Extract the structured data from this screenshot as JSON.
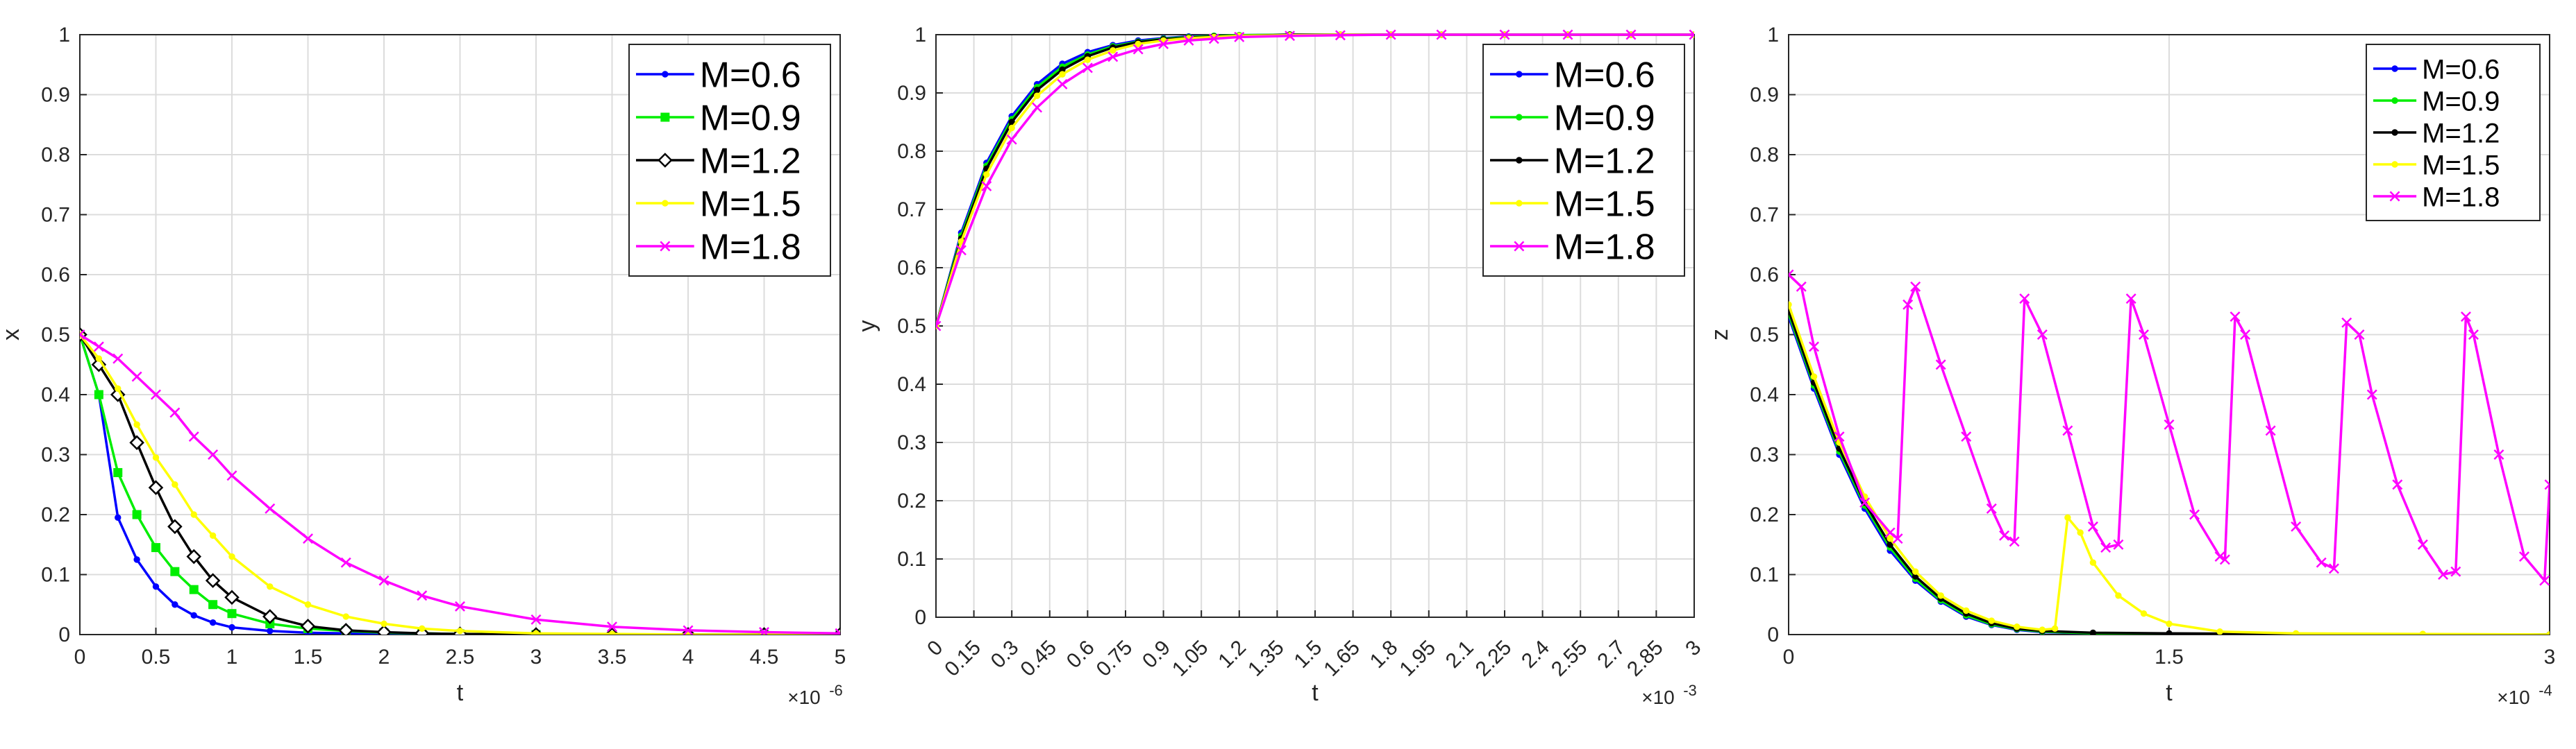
{
  "chart_data": [
    {
      "type": "line",
      "xlabel": "t",
      "ylabel": "x",
      "x_multiplier": "×10",
      "x_exponent": "-6",
      "xlim": [
        0,
        5
      ],
      "ylim": [
        0,
        1
      ],
      "xticks": [
        "0",
        "0.5",
        "1",
        "1.5",
        "2",
        "2.5",
        "3",
        "3.5",
        "4",
        "4.5",
        "5"
      ],
      "yticks": [
        "0",
        "0.1",
        "0.2",
        "0.3",
        "0.4",
        "0.5",
        "0.6",
        "0.7",
        "0.8",
        "0.9",
        "1"
      ],
      "grid": true,
      "legend_position": "top-right",
      "legend_size": "large",
      "x": [
        0,
        0.125,
        0.25,
        0.375,
        0.5,
        0.625,
        0.75,
        0.875,
        1,
        1.25,
        1.5,
        1.75,
        2,
        2.25,
        2.5,
        3,
        3.5,
        4,
        4.5,
        5
      ],
      "series": [
        {
          "name": "M=0.6",
          "color": "#0000ff",
          "marker": "dot",
          "values": [
            0.5,
            0.4,
            0.195,
            0.125,
            0.08,
            0.05,
            0.032,
            0.02,
            0.012,
            0.006,
            0.003,
            0.002,
            0.001,
            0.001,
            0,
            0,
            0,
            0,
            0,
            0
          ]
        },
        {
          "name": "M=0.9",
          "color": "#00ee00",
          "marker": "square",
          "values": [
            0.5,
            0.4,
            0.27,
            0.2,
            0.145,
            0.105,
            0.075,
            0.05,
            0.035,
            0.018,
            0.01,
            0.006,
            0.003,
            0.002,
            0.001,
            0,
            0,
            0,
            0,
            0
          ]
        },
        {
          "name": "M=1.2",
          "color": "#000000",
          "marker": "diamond",
          "values": [
            0.5,
            0.45,
            0.4,
            0.32,
            0.245,
            0.18,
            0.13,
            0.09,
            0.062,
            0.03,
            0.014,
            0.007,
            0.004,
            0.002,
            0.001,
            0,
            0,
            0,
            0,
            0
          ]
        },
        {
          "name": "M=1.5",
          "color": "#ffff00",
          "marker": "dot",
          "values": [
            0.5,
            0.46,
            0.41,
            0.35,
            0.295,
            0.25,
            0.2,
            0.165,
            0.13,
            0.08,
            0.05,
            0.03,
            0.018,
            0.01,
            0.006,
            0.002,
            0.001,
            0,
            0,
            0
          ]
        },
        {
          "name": "M=1.8",
          "color": "#ff00ff",
          "marker": "x",
          "values": [
            0.5,
            0.48,
            0.46,
            0.43,
            0.4,
            0.37,
            0.33,
            0.3,
            0.265,
            0.21,
            0.16,
            0.12,
            0.09,
            0.065,
            0.047,
            0.025,
            0.013,
            0.007,
            0.004,
            0.002
          ]
        }
      ]
    },
    {
      "type": "line",
      "xlabel": "t",
      "ylabel": "y",
      "x_multiplier": "×10",
      "x_exponent": "-3",
      "xlim": [
        0,
        3
      ],
      "ylim": [
        0,
        1
      ],
      "xticks": [
        "0",
        "0.15",
        "0.3",
        "0.45",
        "0.6",
        "0.75",
        "0.9",
        "1.05",
        "1.2",
        "1.35",
        "1.5",
        "1.65",
        "1.8",
        "1.95",
        "2.1",
        "2.25",
        "2.4",
        "2.55",
        "2.7",
        "2.85",
        "3"
      ],
      "yticks": [
        "0",
        "0.1",
        "0.2",
        "0.3",
        "0.4",
        "0.5",
        "0.6",
        "0.7",
        "0.8",
        "0.9",
        "1"
      ],
      "grid": true,
      "legend_position": "top-right",
      "legend_size": "large",
      "x": [
        0,
        0.1,
        0.2,
        0.3,
        0.4,
        0.5,
        0.6,
        0.7,
        0.8,
        0.9,
        1.0,
        1.1,
        1.2,
        1.4,
        1.6,
        1.8,
        2.0,
        2.25,
        2.5,
        2.75,
        3.0
      ],
      "series": [
        {
          "name": "M=0.6",
          "color": "#0000ff",
          "marker": "dot",
          "values": [
            0.5,
            0.66,
            0.78,
            0.86,
            0.915,
            0.95,
            0.97,
            0.982,
            0.99,
            0.994,
            0.997,
            0.998,
            0.999,
            1,
            1,
            1,
            1,
            1,
            1,
            1,
            1
          ]
        },
        {
          "name": "M=0.9",
          "color": "#00ee00",
          "marker": "dot",
          "values": [
            0.5,
            0.655,
            0.775,
            0.855,
            0.91,
            0.945,
            0.966,
            0.98,
            0.988,
            0.993,
            0.996,
            0.998,
            0.999,
            1,
            1,
            1,
            1,
            1,
            1,
            1,
            1
          ]
        },
        {
          "name": "M=1.2",
          "color": "#000000",
          "marker": "dot",
          "values": [
            0.5,
            0.65,
            0.77,
            0.85,
            0.905,
            0.94,
            0.963,
            0.978,
            0.987,
            0.992,
            0.995,
            0.997,
            0.998,
            1,
            1,
            1,
            1,
            1,
            1,
            1,
            1
          ]
        },
        {
          "name": "M=1.5",
          "color": "#ffff00",
          "marker": "dot",
          "values": [
            0.5,
            0.645,
            0.76,
            0.84,
            0.895,
            0.932,
            0.957,
            0.973,
            0.984,
            0.99,
            0.994,
            0.996,
            0.998,
            0.999,
            1,
            1,
            1,
            1,
            1,
            1,
            1
          ]
        },
        {
          "name": "M=1.8",
          "color": "#ff00ff",
          "marker": "x",
          "values": [
            0.5,
            0.63,
            0.74,
            0.82,
            0.875,
            0.915,
            0.943,
            0.962,
            0.975,
            0.984,
            0.99,
            0.993,
            0.996,
            0.998,
            0.999,
            1,
            1,
            1,
            1,
            1,
            1
          ]
        }
      ]
    },
    {
      "type": "line",
      "xlabel": "t",
      "ylabel": "z",
      "x_multiplier": "×10",
      "x_exponent": "-4",
      "xlim": [
        0,
        3
      ],
      "ylim": [
        0,
        1
      ],
      "xticks": [
        "0",
        "1.5",
        "3"
      ],
      "yticks": [
        "0",
        "0.1",
        "0.2",
        "0.3",
        "0.4",
        "0.5",
        "0.6",
        "0.7",
        "0.8",
        "0.9",
        "1"
      ],
      "grid": true,
      "legend_position": "top-right",
      "legend_size": "medium",
      "series": [
        {
          "name": "M=0.6",
          "color": "#0000ff",
          "marker": "dot",
          "x": [
            0,
            0.1,
            0.2,
            0.3,
            0.4,
            0.5,
            0.6,
            0.7,
            0.8,
            0.9,
            1.0,
            1.2,
            1.5,
            2.0,
            2.5,
            3.0
          ],
          "values": [
            0.53,
            0.41,
            0.3,
            0.21,
            0.14,
            0.09,
            0.055,
            0.03,
            0.016,
            0.008,
            0.004,
            0.002,
            0.001,
            0,
            0,
            0
          ]
        },
        {
          "name": "M=0.9",
          "color": "#00ee00",
          "marker": "dot",
          "x": [
            0,
            0.1,
            0.2,
            0.3,
            0.4,
            0.5,
            0.6,
            0.7,
            0.8,
            0.9,
            1.0,
            1.2,
            1.5,
            2.0,
            2.5,
            3.0
          ],
          "values": [
            0.535,
            0.415,
            0.305,
            0.215,
            0.145,
            0.093,
            0.057,
            0.032,
            0.017,
            0.009,
            0.005,
            0.002,
            0.001,
            0,
            0,
            0
          ]
        },
        {
          "name": "M=1.2",
          "color": "#000000",
          "marker": "dot",
          "x": [
            0,
            0.1,
            0.2,
            0.3,
            0.4,
            0.5,
            0.6,
            0.7,
            0.8,
            0.9,
            1.0,
            1.2,
            1.5,
            2.0,
            2.5,
            3.0
          ],
          "values": [
            0.54,
            0.42,
            0.31,
            0.22,
            0.15,
            0.097,
            0.06,
            0.035,
            0.019,
            0.01,
            0.006,
            0.003,
            0.002,
            0.001,
            0,
            0
          ]
        },
        {
          "name": "M=1.5",
          "color": "#ffff00",
          "marker": "dot",
          "x": [
            0,
            0.1,
            0.2,
            0.3,
            0.4,
            0.5,
            0.6,
            0.7,
            0.8,
            0.9,
            1.0,
            1.05,
            1.1,
            1.15,
            1.2,
            1.3,
            1.4,
            1.5,
            1.7,
            2.0,
            2.5,
            3.0
          ],
          "values": [
            0.55,
            0.43,
            0.32,
            0.23,
            0.16,
            0.105,
            0.065,
            0.04,
            0.023,
            0.013,
            0.008,
            0.01,
            0.195,
            0.17,
            0.12,
            0.065,
            0.035,
            0.018,
            0.005,
            0.002,
            0.001,
            0
          ]
        },
        {
          "name": "M=1.8",
          "color": "#ff00ff",
          "marker": "x",
          "x": [
            0,
            0.05,
            0.1,
            0.2,
            0.3,
            0.4,
            0.43,
            0.47,
            0.5,
            0.6,
            0.7,
            0.8,
            0.85,
            0.89,
            0.93,
            1.0,
            1.1,
            1.2,
            1.25,
            1.3,
            1.35,
            1.4,
            1.5,
            1.6,
            1.7,
            1.72,
            1.76,
            1.8,
            1.9,
            2.0,
            2.1,
            2.15,
            2.2,
            2.25,
            2.3,
            2.4,
            2.5,
            2.58,
            2.63,
            2.67,
            2.7,
            2.8,
            2.9,
            2.98,
            3.0
          ],
          "values": [
            0.6,
            0.58,
            0.48,
            0.33,
            0.22,
            0.17,
            0.16,
            0.55,
            0.58,
            0.45,
            0.33,
            0.21,
            0.165,
            0.155,
            0.56,
            0.5,
            0.34,
            0.18,
            0.145,
            0.15,
            0.56,
            0.5,
            0.35,
            0.2,
            0.13,
            0.125,
            0.53,
            0.5,
            0.34,
            0.18,
            0.12,
            0.11,
            0.52,
            0.5,
            0.4,
            0.25,
            0.15,
            0.1,
            0.105,
            0.53,
            0.5,
            0.3,
            0.13,
            0.09,
            0.25
          ]
        }
      ]
    }
  ]
}
